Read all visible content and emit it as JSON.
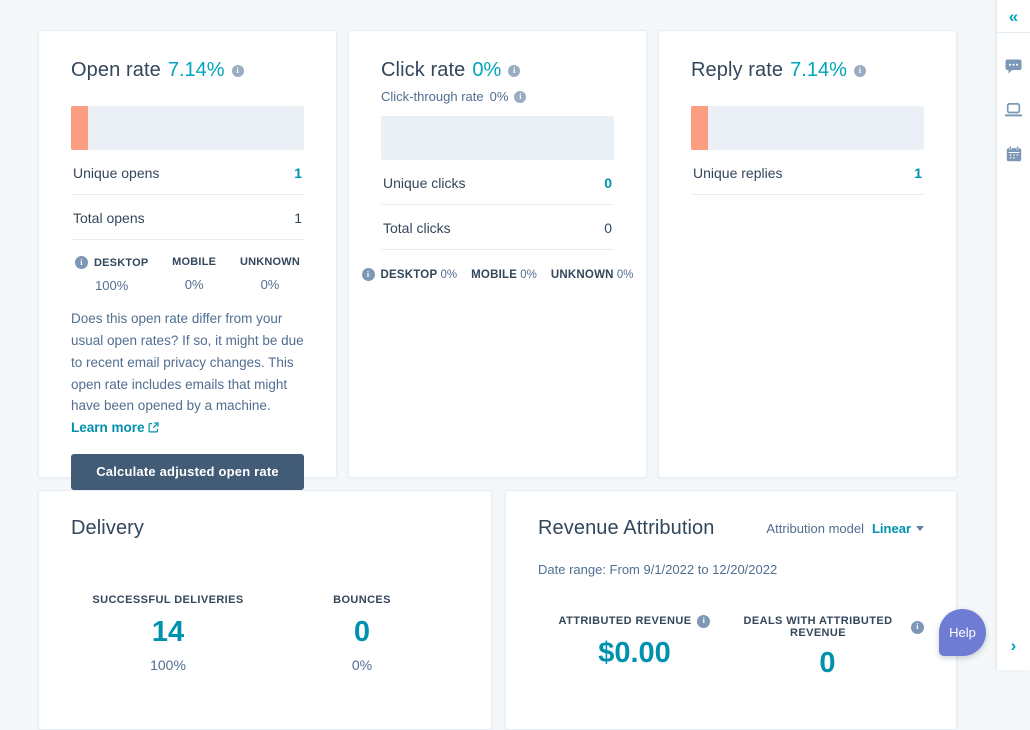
{
  "cards": {
    "open_rate": {
      "title": "Open rate",
      "value": "7.14%",
      "bar_percent": 7.14,
      "unique": {
        "label": "Unique opens",
        "value": "1"
      },
      "total": {
        "label": "Total opens",
        "value": "1"
      },
      "devices": [
        {
          "label": "DESKTOP",
          "value": "100%"
        },
        {
          "label": "MOBILE",
          "value": "0%"
        },
        {
          "label": "UNKNOWN",
          "value": "0%"
        }
      ],
      "note": "Does this open rate differ from your usual open rates? If so, it might be due to recent email privacy changes. This open rate includes emails that might have been opened by a machine.",
      "learn_more_label": "Learn more",
      "cta_label": "Calculate adjusted open rate"
    },
    "click_rate": {
      "title": "Click rate",
      "value": "0%",
      "subtitle_label": "Click-through rate",
      "subtitle_value": "0%",
      "bar_percent": 0,
      "unique": {
        "label": "Unique clicks",
        "value": "0"
      },
      "total": {
        "label": "Total clicks",
        "value": "0"
      },
      "devices": [
        {
          "label": "DESKTOP",
          "value": "0%"
        },
        {
          "label": "MOBILE",
          "value": "0%"
        },
        {
          "label": "UNKNOWN",
          "value": "0%"
        }
      ]
    },
    "reply_rate": {
      "title": "Reply rate",
      "value": "7.14%",
      "bar_percent": 7.14,
      "unique": {
        "label": "Unique replies",
        "value": "1"
      }
    },
    "delivery": {
      "title": "Delivery",
      "stats": [
        {
          "label": "SUCCESSFUL DELIVERIES",
          "value": "14",
          "percent": "100%"
        },
        {
          "label": "BOUNCES",
          "value": "0",
          "percent": "0%"
        }
      ]
    },
    "revenue_attribution": {
      "title": "Revenue Attribution",
      "model_label": "Attribution model",
      "model_value": "Linear",
      "date_range": "Date range: From 9/1/2022 to 12/20/2022",
      "stats": [
        {
          "label": "ATTRIBUTED REVENUE",
          "value": "$0.00"
        },
        {
          "label": "DEALS WITH ATTRIBUTED REVENUE",
          "value": "0"
        }
      ]
    }
  },
  "sidebar": {
    "collapse_glyph": "«",
    "expand_glyph": "›"
  },
  "help": {
    "label": "Help"
  },
  "colors": {
    "accent_teal": "#00a4bd",
    "value_teal": "#0091ae",
    "bar_fill": "#fb9d80",
    "bar_bg": "#eaf0f6",
    "button_bg": "#425b76",
    "help_purple": "#6e7cd3",
    "page_bg": "#f5f8fa"
  }
}
